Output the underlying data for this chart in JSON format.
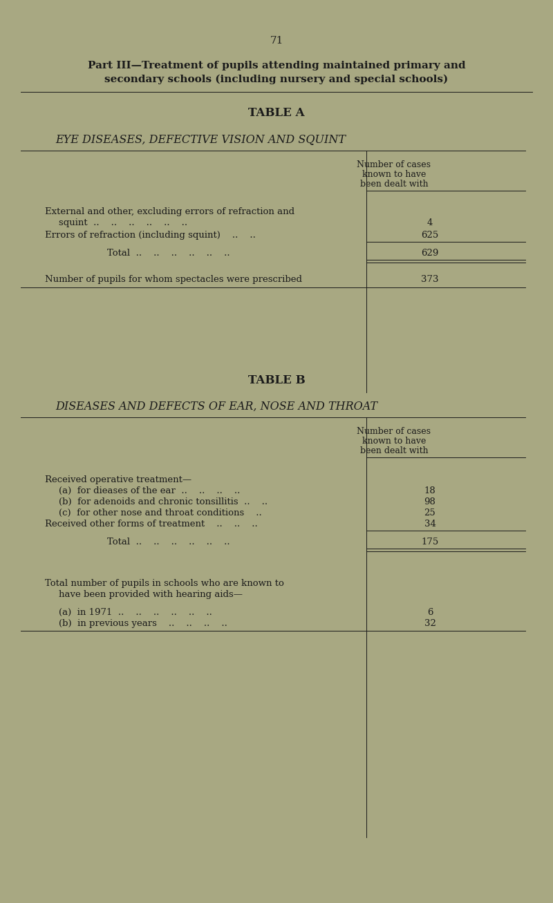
{
  "bg_color": "#a8a882",
  "text_color": "#1a1a1a",
  "page_number": "71",
  "part_title_line1": "Part III—Treatment of pupils attending maintained primary and",
  "part_title_line2": "secondary schools (including nursery and special schools)",
  "table_a_title": "TABLE A",
  "table_a_subtitle": "EYE DISEASES, DEFECTIVE VISION AND SQUINT",
  "col_header_line1": "Number of cases",
  "col_header_line2": "known to have",
  "col_header_line3": "been dealt with",
  "table_b_title": "TABLE B",
  "table_b_subtitle": "DISEASES AND DEFECTS OF EAR, NOSE AND THROAT"
}
